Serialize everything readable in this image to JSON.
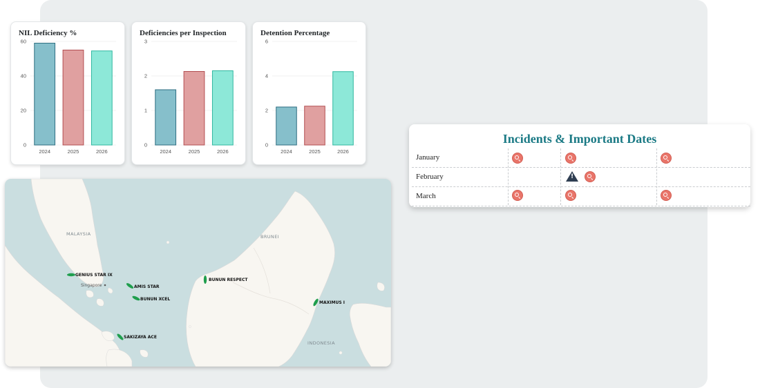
{
  "charts": [
    {
      "title": "NIL Deficiency %",
      "chart_data": {
        "type": "bar",
        "title": "NIL Deficiency %",
        "categories": [
          "2024",
          "2025",
          "2026"
        ],
        "values": [
          59,
          55,
          54.5
        ],
        "ylim": [
          0,
          60
        ],
        "yticks": [
          0,
          20,
          40,
          60
        ],
        "grid": true
      }
    },
    {
      "title": "Deficiencies per Inspection",
      "chart_data": {
        "type": "bar",
        "title": "Deficiencies per Inspection",
        "categories": [
          "2024",
          "2025",
          "2026"
        ],
        "values": [
          1.6,
          2.13,
          2.15
        ],
        "ylim": [
          0,
          3
        ],
        "yticks": [
          0,
          1,
          2,
          3
        ],
        "grid": true
      }
    },
    {
      "title": "Detention Percentage",
      "chart_data": {
        "type": "bar",
        "title": "Detention Percentage",
        "categories": [
          "2024",
          "2025",
          "2026"
        ],
        "values": [
          2.2,
          2.25,
          4.25
        ],
        "ylim": [
          0,
          6
        ],
        "yticks": [
          0,
          2,
          4,
          6
        ],
        "grid": true
      }
    }
  ],
  "bar_colors": [
    {
      "fill": "#86bfcb",
      "stroke": "#2e6e80"
    },
    {
      "fill": "#e0a0a0",
      "stroke": "#b24d50"
    },
    {
      "fill": "#8de8d8",
      "stroke": "#2fb7a0"
    }
  ],
  "map": {
    "countries": [
      "MALAYSIA",
      "BRUNEI",
      "INDONESIA"
    ],
    "city": "Singapore",
    "vessels": [
      "GENIUS STAR IX",
      "AMIS STAR",
      "BUNUN XCEL",
      "BUNUN RESPECT",
      "MAXIMUS I",
      "SAKIZAYA ACE"
    ],
    "vessel_color": "#1f9e4d"
  },
  "incidents": {
    "title": "Incidents & Important Dates",
    "rows": [
      {
        "month": "January",
        "markers": [
          "search-icon",
          "search-icon",
          "search-icon"
        ]
      },
      {
        "month": "February",
        "markers": [
          "",
          "warning-icon search-icon",
          ""
        ]
      },
      {
        "month": "March",
        "markers": [
          "search-icon",
          "search-icon",
          "search-icon"
        ]
      }
    ]
  }
}
